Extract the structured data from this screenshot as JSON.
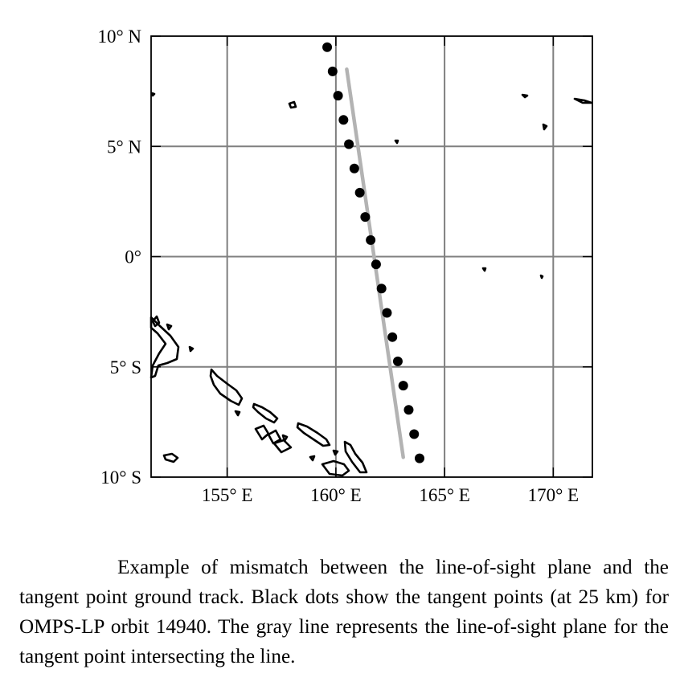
{
  "map": {
    "lat_labels": [
      "10° N",
      "5° N",
      "0°",
      "5° S",
      "10° S"
    ],
    "lon_labels": [
      "155° E",
      "160° E",
      "165° E",
      "170° E"
    ],
    "lat_values": [
      10,
      5,
      0,
      -5,
      -10
    ],
    "lon_values": [
      155,
      160,
      165,
      170
    ],
    "lat_range": [
      -10,
      10
    ],
    "lon_range": [
      151.5,
      171.8
    ],
    "tangent_points": [
      [
        159.6,
        9.5
      ],
      [
        159.85,
        8.4
      ],
      [
        160.1,
        7.3
      ],
      [
        160.35,
        6.2
      ],
      [
        160.6,
        5.1
      ],
      [
        160.85,
        4.0
      ],
      [
        161.1,
        2.9
      ],
      [
        161.35,
        1.8
      ],
      [
        161.6,
        0.75
      ],
      [
        161.85,
        -0.35
      ],
      [
        162.1,
        -1.45
      ],
      [
        162.35,
        -2.55
      ],
      [
        162.6,
        -3.65
      ],
      [
        162.85,
        -4.75
      ],
      [
        163.1,
        -5.85
      ],
      [
        163.35,
        -6.95
      ],
      [
        163.6,
        -8.05
      ],
      [
        163.85,
        -9.15
      ]
    ],
    "los_line": [
      [
        160.5,
        8.5
      ],
      [
        163.1,
        -9.1
      ]
    ],
    "colors": {
      "grid": "#7f7f7f",
      "los": "#b3b3b3",
      "dots": "#000000",
      "coast": "#000000"
    }
  },
  "caption": "Example of mismatch between the line-of-sight plane and the tangent point ground track. Black dots show the tangent points (at 25 km) for OMPS-LP orbit 14940. The gray line represents the line-of-sight plane for the tangent point intersecting the line."
}
